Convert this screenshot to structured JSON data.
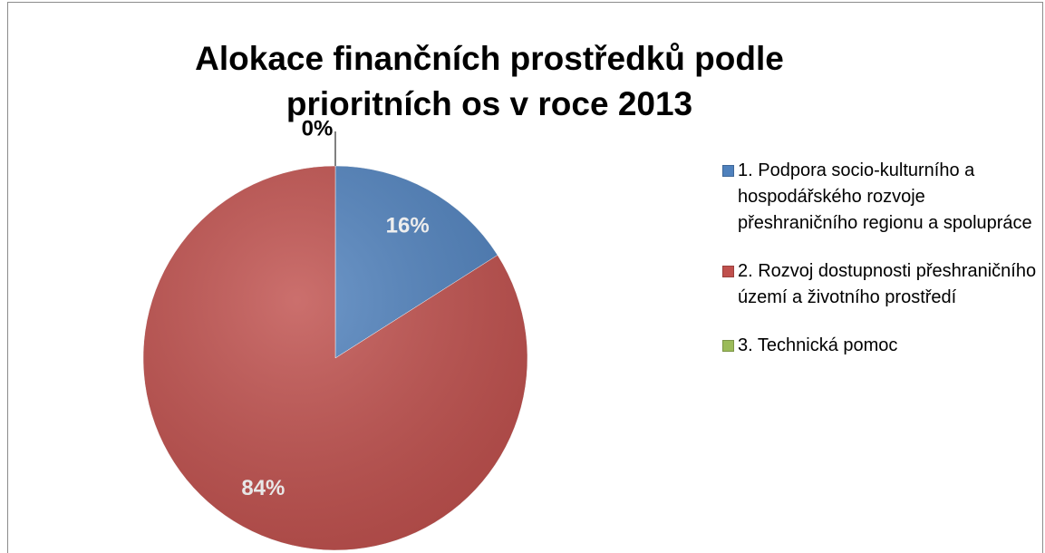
{
  "chart_data": {
    "type": "pie",
    "title": "Alokace finančních prostředků podle prioritních os v roce 2013",
    "categories": [
      "1. Podpora socio-kulturního a hospodářského rozvoje přeshraničního regionu a spolupráce",
      "2. Rozvoj dostupnosti přeshraničního území a životního prostředí",
      "3. Technická pomoc"
    ],
    "values": [
      16,
      84,
      0
    ],
    "value_labels": [
      "16%",
      "84%",
      "0%"
    ],
    "colors": [
      "#4f81bd",
      "#c0504d",
      "#9bbb59"
    ],
    "legend": "right"
  }
}
